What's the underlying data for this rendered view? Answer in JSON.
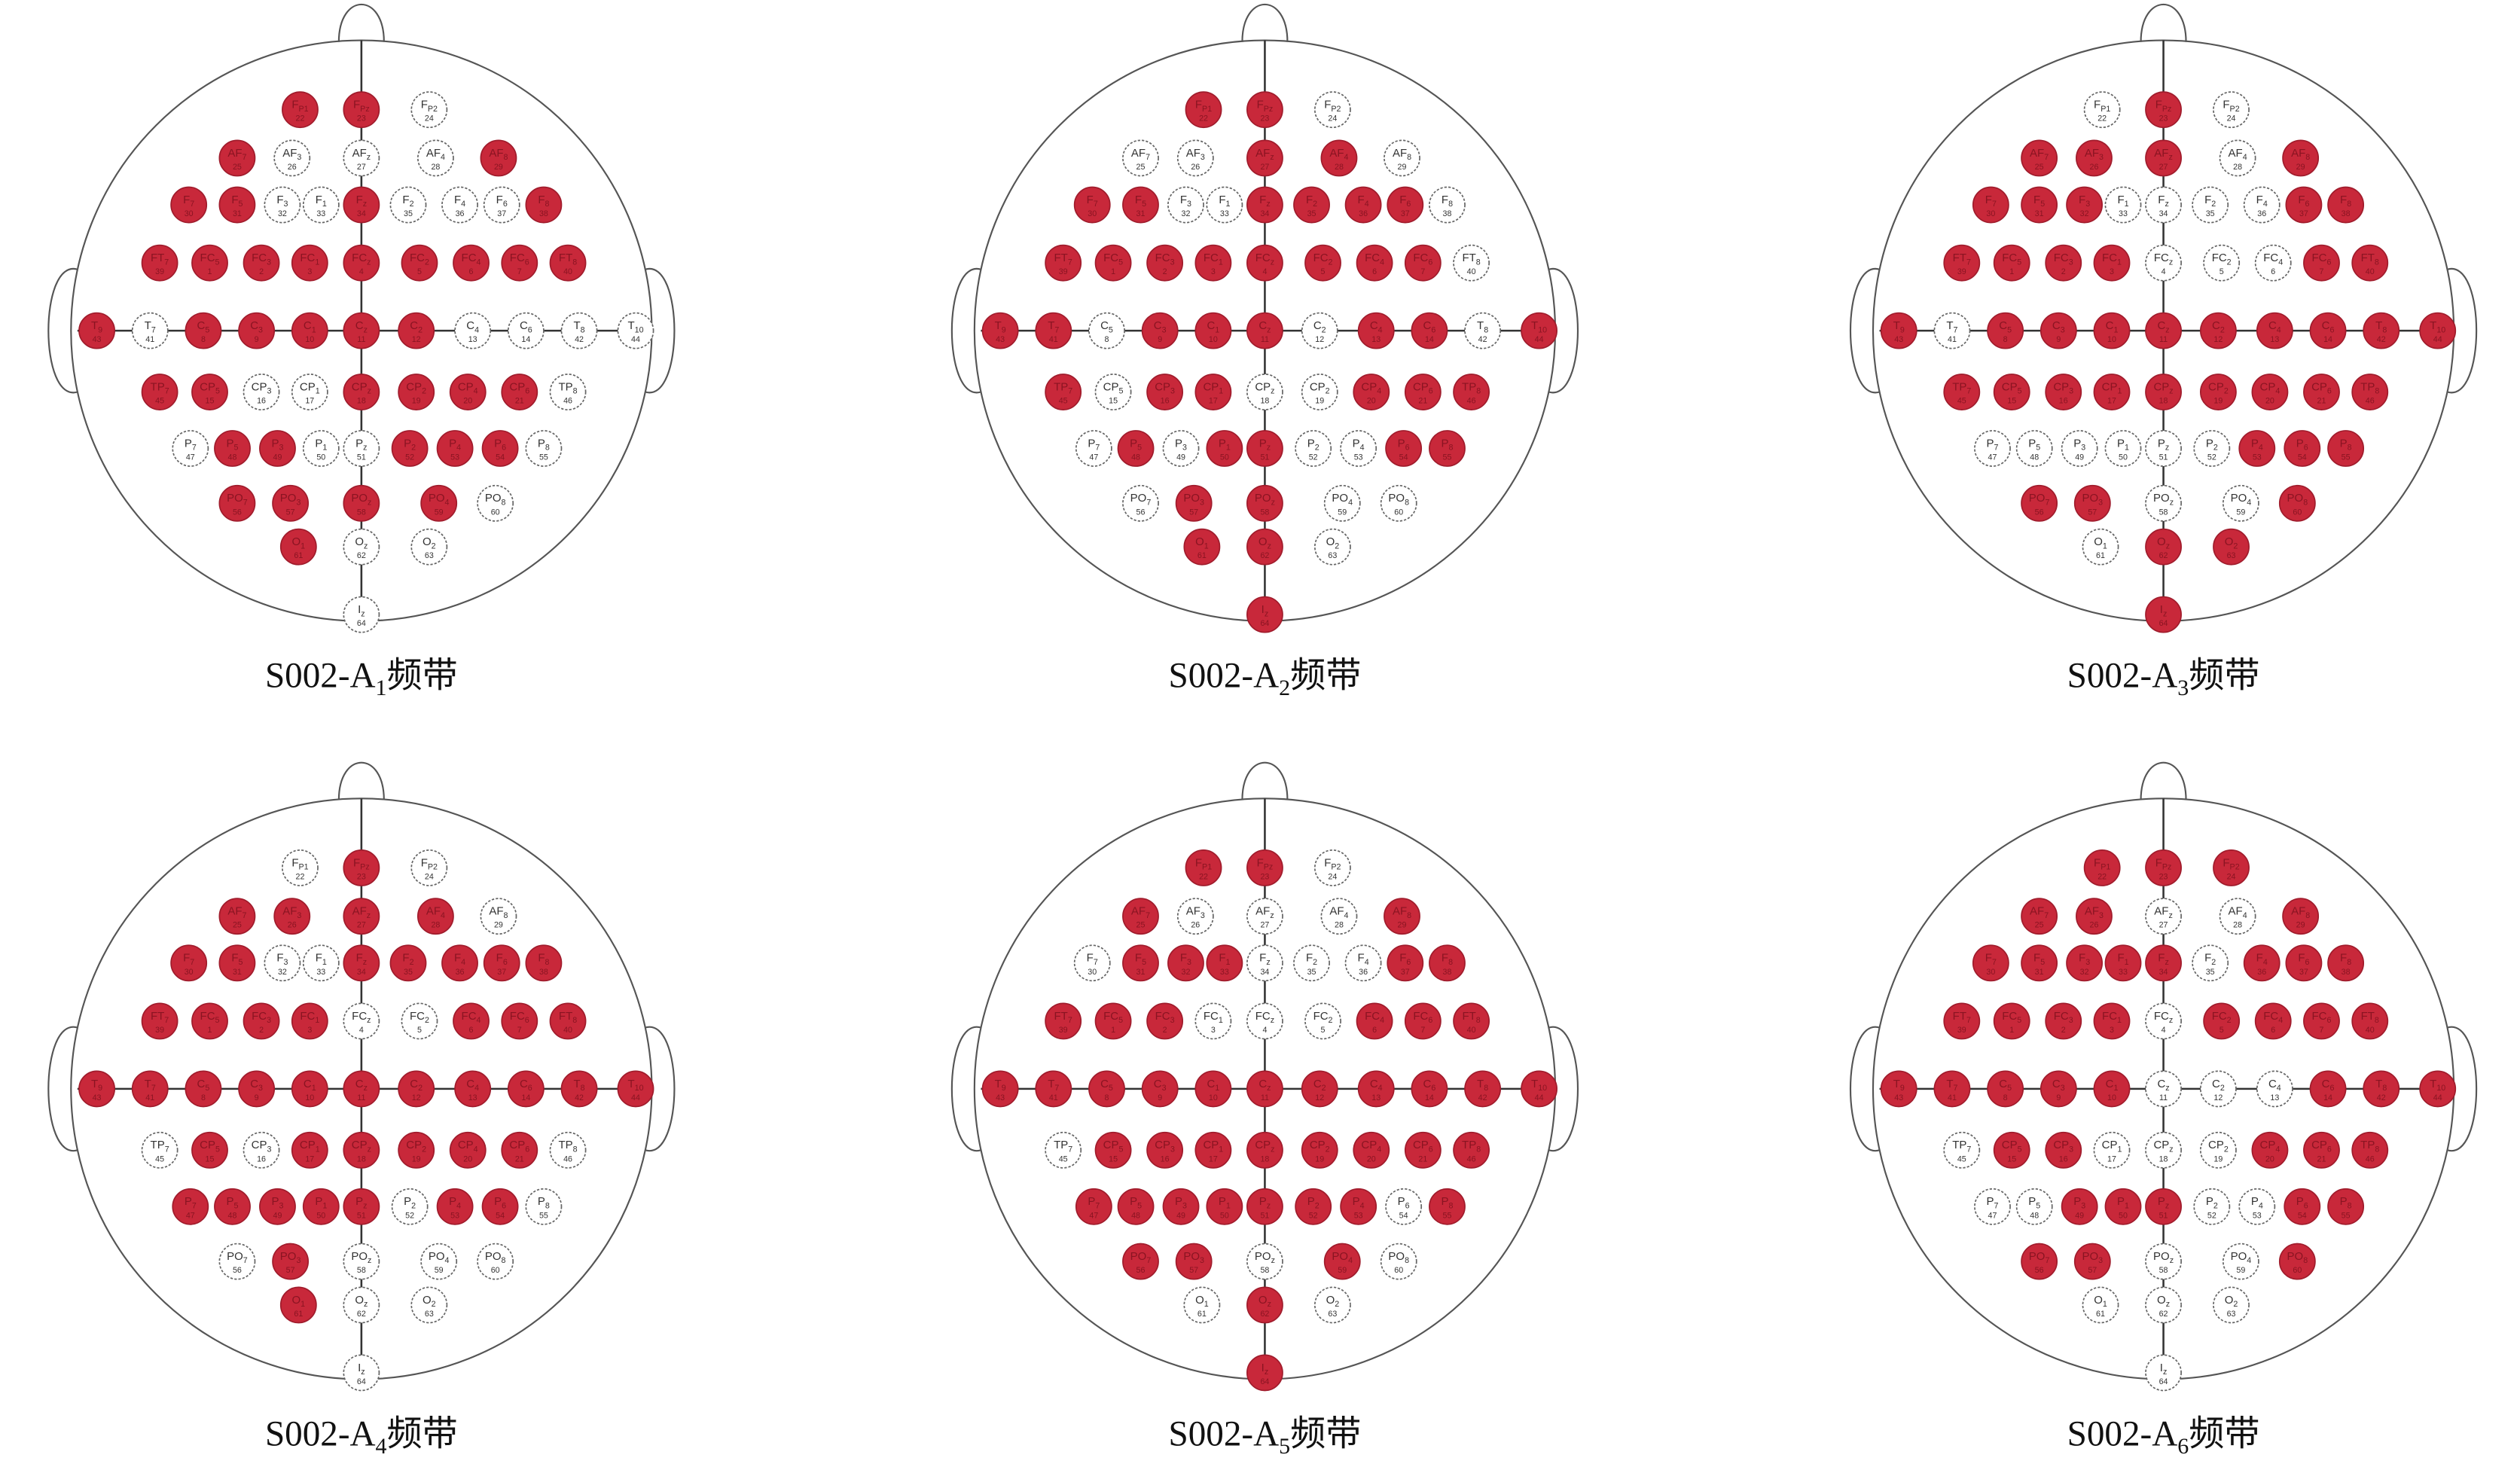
{
  "electrodes": [
    {
      "base": "F",
      "sub": "P1",
      "number": 22
    },
    {
      "base": "F",
      "sub": "Pz",
      "number": 23
    },
    {
      "base": "F",
      "sub": "P2",
      "number": 24
    },
    {
      "base": "AF",
      "sub": "7",
      "number": 25
    },
    {
      "base": "AF",
      "sub": "3",
      "number": 26
    },
    {
      "base": "AF",
      "sub": "z",
      "number": 27
    },
    {
      "base": "AF",
      "sub": "4",
      "number": 28
    },
    {
      "base": "AF",
      "sub": "8",
      "number": 29
    },
    {
      "base": "F",
      "sub": "7",
      "number": 30
    },
    {
      "base": "F",
      "sub": "5",
      "number": 31
    },
    {
      "base": "F",
      "sub": "3",
      "number": 32
    },
    {
      "base": "F",
      "sub": "1",
      "number": 33
    },
    {
      "base": "F",
      "sub": "z",
      "number": 34
    },
    {
      "base": "F",
      "sub": "2",
      "number": 35
    },
    {
      "base": "F",
      "sub": "4",
      "number": 36
    },
    {
      "base": "F",
      "sub": "6",
      "number": 37
    },
    {
      "base": "F",
      "sub": "8",
      "number": 38
    },
    {
      "base": "FT",
      "sub": "7",
      "number": 39
    },
    {
      "base": "FC",
      "sub": "5",
      "number": 1
    },
    {
      "base": "FC",
      "sub": "3",
      "number": 2
    },
    {
      "base": "FC",
      "sub": "1",
      "number": 3
    },
    {
      "base": "FC",
      "sub": "z",
      "number": 4
    },
    {
      "base": "FC",
      "sub": "2",
      "number": 5
    },
    {
      "base": "FC",
      "sub": "4",
      "number": 6
    },
    {
      "base": "FC",
      "sub": "6",
      "number": 7
    },
    {
      "base": "FT",
      "sub": "8",
      "number": 40
    },
    {
      "base": "T",
      "sub": "9",
      "number": 43
    },
    {
      "base": "T",
      "sub": "7",
      "number": 41
    },
    {
      "base": "C",
      "sub": "5",
      "number": 8
    },
    {
      "base": "C",
      "sub": "3",
      "number": 9
    },
    {
      "base": "C",
      "sub": "1",
      "number": 10
    },
    {
      "base": "C",
      "sub": "z",
      "number": 11
    },
    {
      "base": "C",
      "sub": "2",
      "number": 12
    },
    {
      "base": "C",
      "sub": "4",
      "number": 13
    },
    {
      "base": "C",
      "sub": "6",
      "number": 14
    },
    {
      "base": "T",
      "sub": "8",
      "number": 42
    },
    {
      "base": "T",
      "sub": "10",
      "number": 44
    },
    {
      "base": "TP",
      "sub": "7",
      "number": 45
    },
    {
      "base": "CP",
      "sub": "5",
      "number": 15
    },
    {
      "base": "CP",
      "sub": "3",
      "number": 16
    },
    {
      "base": "CP",
      "sub": "1",
      "number": 17
    },
    {
      "base": "CP",
      "sub": "z",
      "number": 18
    },
    {
      "base": "CP",
      "sub": "2",
      "number": 19
    },
    {
      "base": "CP",
      "sub": "4",
      "number": 20
    },
    {
      "base": "CP",
      "sub": "6",
      "number": 21
    },
    {
      "base": "TP",
      "sub": "8",
      "number": 46
    },
    {
      "base": "P",
      "sub": "7",
      "number": 47
    },
    {
      "base": "P",
      "sub": "5",
      "number": 48
    },
    {
      "base": "P",
      "sub": "3",
      "number": 49
    },
    {
      "base": "P",
      "sub": "1",
      "number": 50
    },
    {
      "base": "P",
      "sub": "z",
      "number": 51
    },
    {
      "base": "P",
      "sub": "2",
      "number": 52
    },
    {
      "base": "P",
      "sub": "4",
      "number": 53
    },
    {
      "base": "P",
      "sub": "6",
      "number": 54
    },
    {
      "base": "P",
      "sub": "8",
      "number": 55
    },
    {
      "base": "PO",
      "sub": "7",
      "number": 56
    },
    {
      "base": "PO",
      "sub": "3",
      "number": 57
    },
    {
      "base": "PO",
      "sub": "z",
      "number": 58
    },
    {
      "base": "PO",
      "sub": "4",
      "number": 59
    },
    {
      "base": "PO",
      "sub": "8",
      "number": 60
    },
    {
      "base": "O",
      "sub": "1",
      "number": 61
    },
    {
      "base": "O",
      "sub": "z",
      "number": 62
    },
    {
      "base": "O",
      "sub": "2",
      "number": 63
    },
    {
      "base": "I",
      "sub": "z",
      "number": 64
    }
  ],
  "maps": [
    {
      "caption": {
        "text": "S002-A",
        "sub": "1",
        "suffix": "频带"
      },
      "active": [
        1,
        1,
        0,
        1,
        0,
        0,
        0,
        1,
        1,
        1,
        0,
        0,
        1,
        0,
        0,
        0,
        1,
        1,
        1,
        1,
        1,
        1,
        1,
        1,
        1,
        1,
        1,
        0,
        1,
        1,
        1,
        1,
        1,
        0,
        0,
        0,
        0,
        1,
        1,
        0,
        0,
        1,
        1,
        1,
        1,
        0,
        0,
        1,
        1,
        0,
        0,
        1,
        1,
        1,
        0,
        1,
        1,
        1,
        1,
        0,
        1,
        0,
        0,
        0
      ]
    },
    {
      "caption": {
        "text": "S002-A",
        "sub": "2",
        "suffix": "频带"
      },
      "active": [
        1,
        1,
        0,
        0,
        0,
        1,
        1,
        0,
        1,
        1,
        0,
        0,
        1,
        1,
        1,
        1,
        0,
        1,
        1,
        1,
        1,
        1,
        1,
        1,
        1,
        0,
        1,
        1,
        0,
        1,
        1,
        1,
        0,
        1,
        1,
        0,
        1,
        1,
        0,
        1,
        1,
        0,
        0,
        1,
        1,
        1,
        0,
        1,
        0,
        1,
        1,
        0,
        0,
        1,
        1,
        0,
        1,
        1,
        0,
        0,
        1,
        1,
        0,
        1
      ]
    },
    {
      "caption": {
        "text": "S002-A",
        "sub": "3",
        "suffix": "频带"
      },
      "active": [
        0,
        1,
        0,
        1,
        1,
        1,
        0,
        1,
        1,
        1,
        1,
        0,
        0,
        0,
        0,
        1,
        1,
        1,
        1,
        1,
        1,
        0,
        0,
        0,
        1,
        1,
        1,
        0,
        1,
        1,
        1,
        1,
        1,
        1,
        1,
        1,
        1,
        1,
        1,
        1,
        1,
        1,
        1,
        1,
        1,
        1,
        0,
        0,
        0,
        0,
        0,
        0,
        1,
        1,
        1,
        1,
        1,
        0,
        0,
        1,
        0,
        1,
        1,
        1
      ]
    },
    {
      "caption": {
        "text": "S002-A",
        "sub": "4",
        "suffix": "频带"
      },
      "active": [
        0,
        1,
        0,
        1,
        1,
        1,
        1,
        0,
        1,
        1,
        0,
        0,
        1,
        1,
        1,
        1,
        1,
        1,
        1,
        1,
        1,
        0,
        0,
        1,
        1,
        1,
        1,
        1,
        1,
        1,
        1,
        1,
        1,
        1,
        1,
        1,
        1,
        0,
        1,
        0,
        1,
        1,
        1,
        1,
        1,
        0,
        1,
        1,
        1,
        1,
        1,
        0,
        1,
        1,
        0,
        0,
        1,
        0,
        0,
        0,
        1,
        0,
        0,
        0
      ]
    },
    {
      "caption": {
        "text": "S002-A",
        "sub": "5",
        "suffix": "频带"
      },
      "active": [
        1,
        1,
        0,
        1,
        0,
        0,
        0,
        1,
        0,
        1,
        1,
        1,
        0,
        0,
        0,
        1,
        1,
        1,
        1,
        1,
        0,
        0,
        0,
        1,
        1,
        1,
        1,
        1,
        1,
        1,
        1,
        1,
        1,
        1,
        1,
        1,
        1,
        0,
        1,
        1,
        1,
        1,
        1,
        1,
        1,
        1,
        1,
        1,
        1,
        1,
        1,
        1,
        1,
        0,
        1,
        1,
        1,
        0,
        1,
        0,
        0,
        1,
        0,
        1
      ]
    },
    {
      "caption": {
        "text": "S002-A",
        "sub": "6",
        "suffix": "频带"
      },
      "active": [
        1,
        1,
        1,
        1,
        1,
        0,
        0,
        1,
        1,
        1,
        1,
        1,
        1,
        0,
        1,
        1,
        1,
        1,
        1,
        1,
        1,
        0,
        1,
        1,
        1,
        1,
        1,
        1,
        1,
        1,
        1,
        0,
        0,
        0,
        1,
        1,
        1,
        0,
        1,
        1,
        0,
        0,
        0,
        1,
        1,
        1,
        0,
        0,
        1,
        1,
        1,
        0,
        0,
        1,
        1,
        1,
        1,
        0,
        0,
        1,
        0,
        0,
        0,
        0
      ]
    }
  ]
}
